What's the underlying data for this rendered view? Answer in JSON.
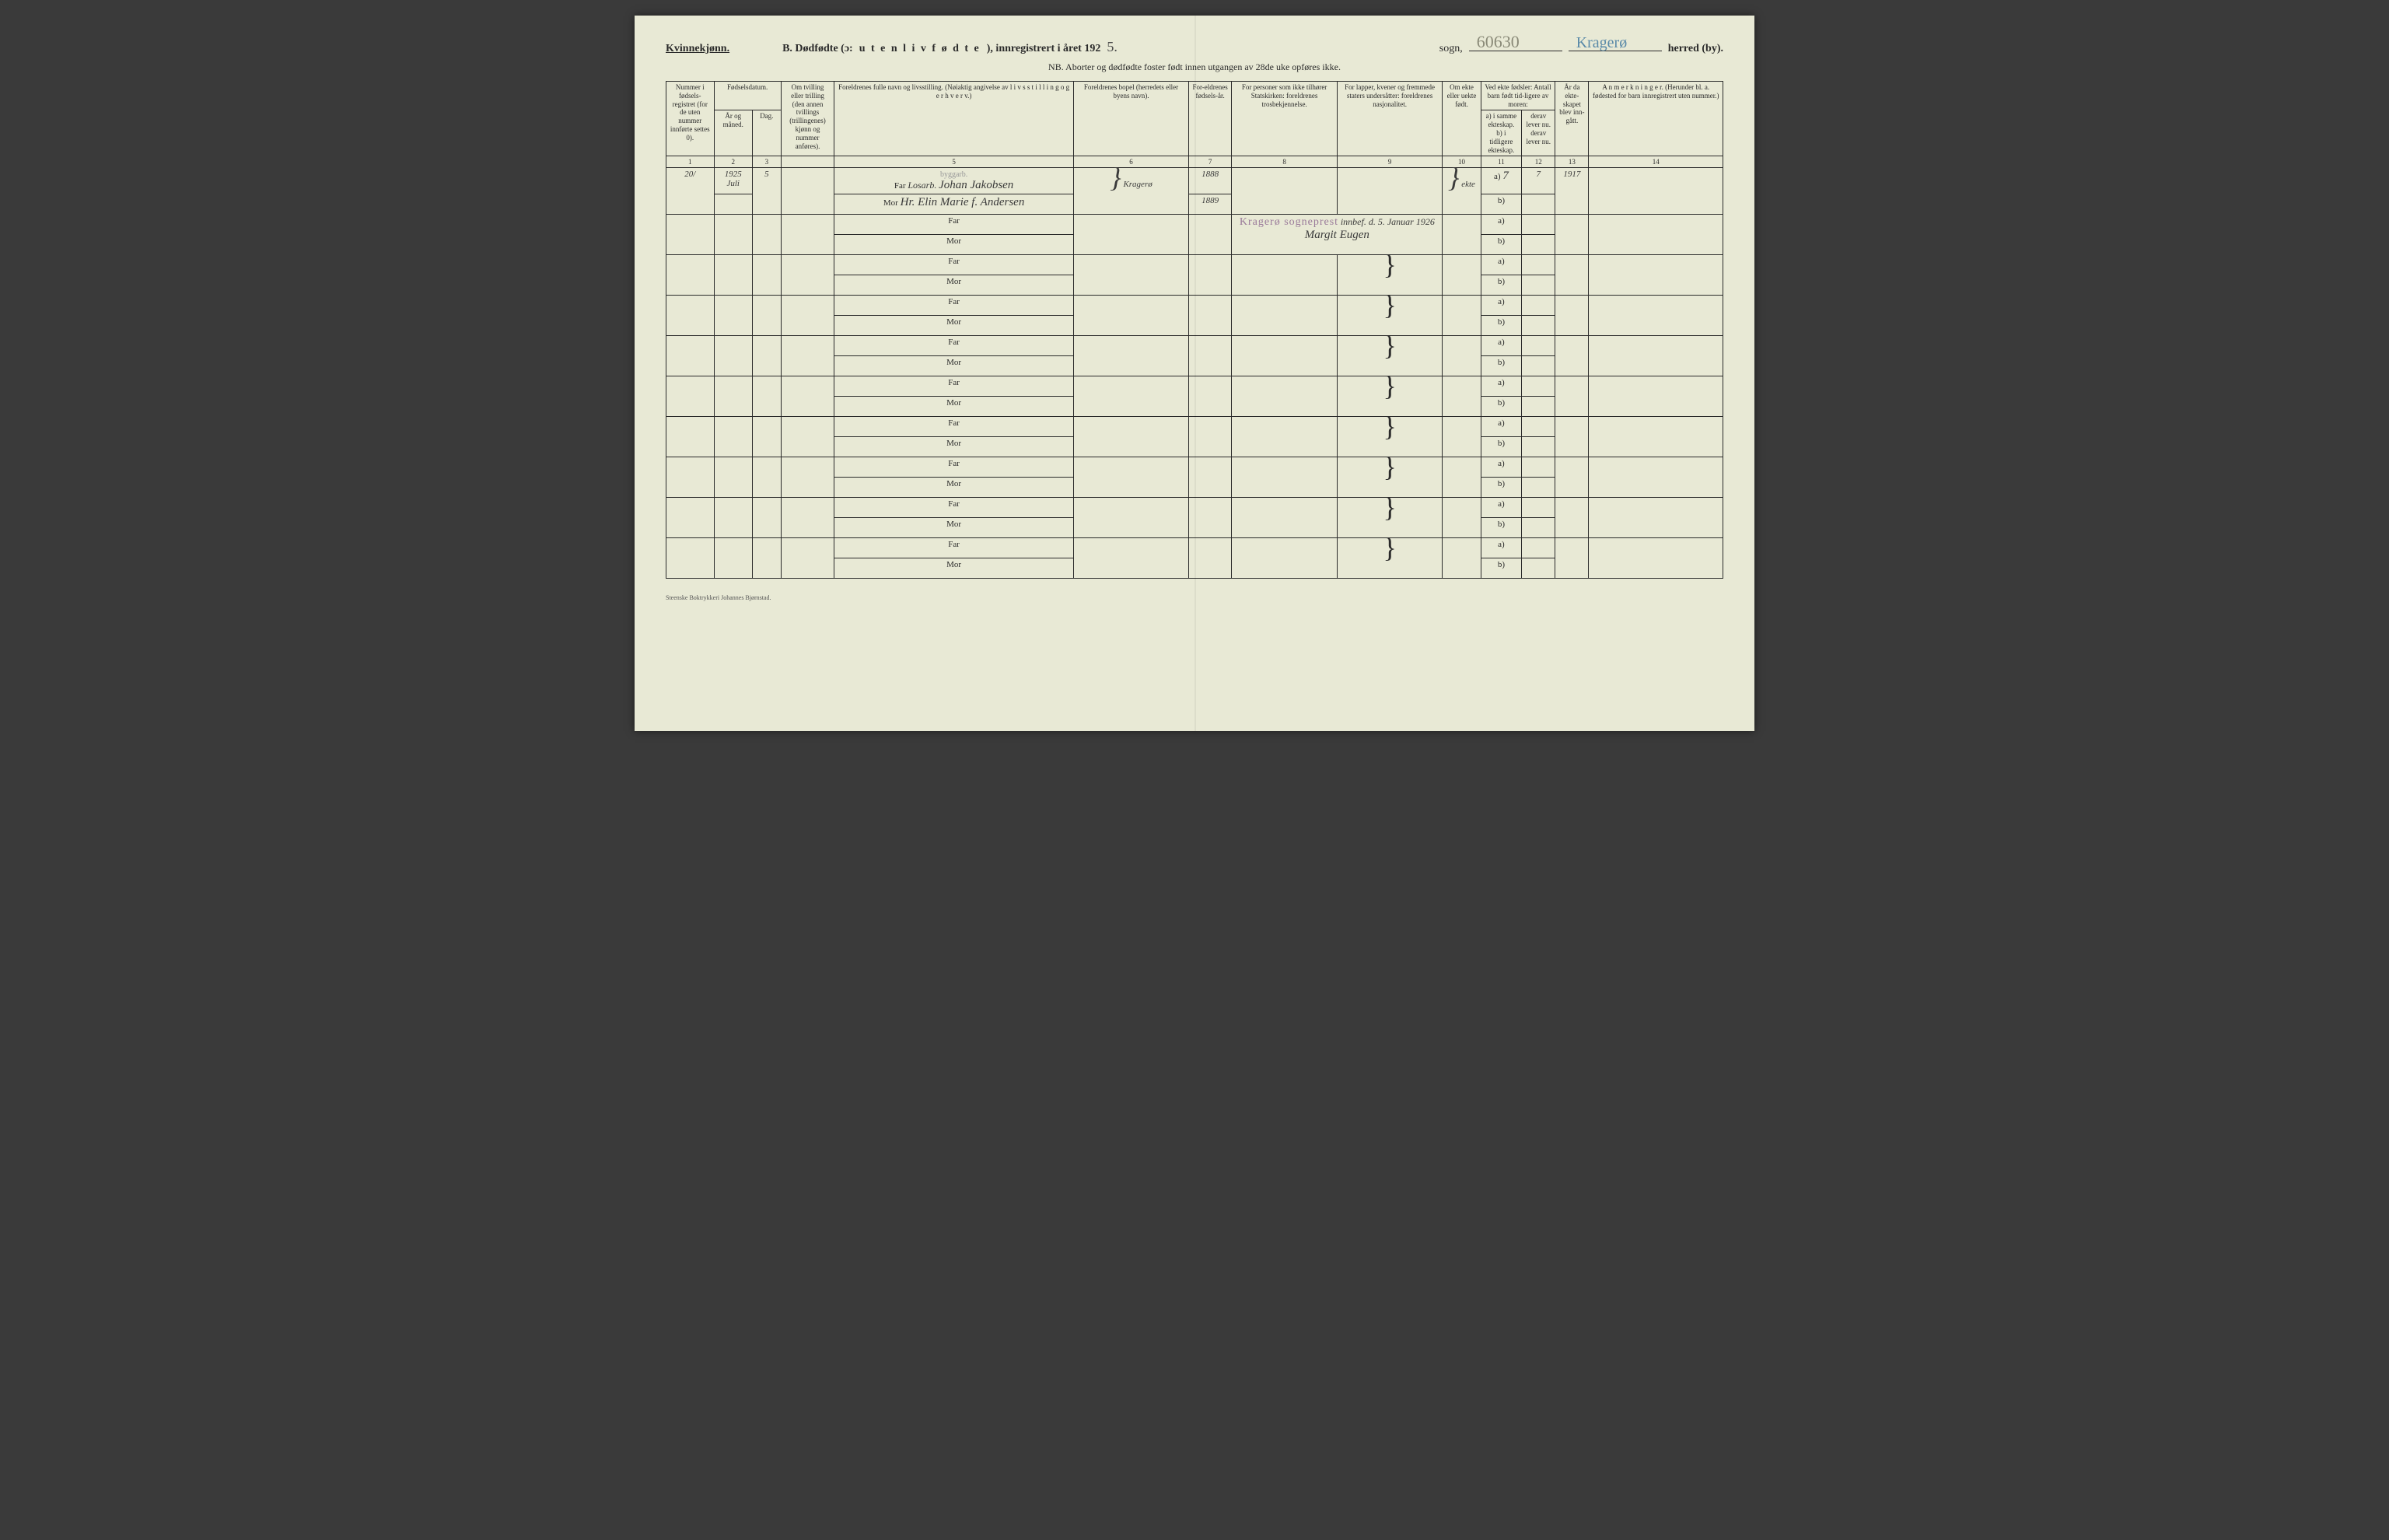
{
  "header": {
    "gender": "Kvinnekjønn.",
    "title_prefix": "B.  Dødfødte (ɔ:",
    "title_spaced": "u t e n  l i v  f ø d t e",
    "title_suffix": "), innregistrert i året 192",
    "year_hand": "5.",
    "sogn_label": "sogn,",
    "number_hand": "60630",
    "parish_hand": "Kragerø",
    "herred_label": "herred (by).",
    "nb": "NB.  Aborter og dødfødte foster født innen utgangen av 28de uke opføres ikke."
  },
  "columns": {
    "c1": "Nummer i fødsels-registret (for de uten nummer innførte settes 0).",
    "c2_top": "Fødselsdatum.",
    "c2a": "År og måned.",
    "c2b": "Dag.",
    "c4": "Om tvilling eller trilling (den annen tvillings (trillingenes) kjønn og nummer anføres).",
    "c5": "Foreldrenes fulle navn og livsstilling. (Nøiaktig angivelse av  l i v s s t i l l i n g  o g  e r h v e r v.)",
    "c6": "Foreldrenes bopel (herredets eller byens navn).",
    "c7": "For-eldrenes fødsels-år.",
    "c8": "For personer som ikke tilhører Statskirken: foreldrenes trosbekjennelse.",
    "c9": "For lapper, kvener og fremmede staters undersåtter: foreldrenes nasjonalitet.",
    "c10": "Om ekte eller uekte født.",
    "c11_top": "Ved ekte fødsler: Antall barn født tid-ligere av moren:",
    "c11a": "a) i samme ekteskap.",
    "c11b": "derav lever nu.",
    "c11c": "b) i tidligere ekteskap.",
    "c11d": "derav lever nu.",
    "c13": "År da ekte-skapet blev inn-gått.",
    "c14": "A n m e r k n i n g e r. (Herunder bl. a. fødested for barn innregistrert uten nummer.)"
  },
  "colnums": [
    "1",
    "2",
    "3",
    "",
    "5",
    "6",
    "7",
    "8",
    "9",
    "10",
    "11",
    "12",
    "13",
    "14"
  ],
  "row1": {
    "num": "20/",
    "year": "1925",
    "month": "Juli",
    "day": "5",
    "occupation_note": "byggarb.",
    "occupation_prefix": "Losarb.",
    "far_name": "Johan Jakobsen",
    "mor_name": "Hr. Elin Marie f. Andersen",
    "bopel": "Kragerø",
    "far_year": "1888",
    "mor_year": "1889",
    "ekte": "ekte",
    "a_val": "7",
    "a_live": "7",
    "marriage_year": "1917"
  },
  "row2": {
    "stamp": "Kragerø sogneprest",
    "note": "innbef. d. 5. Januar 1926",
    "signature": "Margit Eugen"
  },
  "labels": {
    "far": "Far",
    "mor": "Mor",
    "a": "a)",
    "b": "b)"
  },
  "footer": "Steenske Boktrykkeri Johannes Bjørnstad.",
  "style": {
    "page_bg": "#e8e9d5",
    "ink": "#2a2a2a",
    "pencil": "#8a8a78",
    "blue_ink": "#5a8aa8",
    "stamp_color": "#9a7a9a",
    "empty_rows": 8
  }
}
